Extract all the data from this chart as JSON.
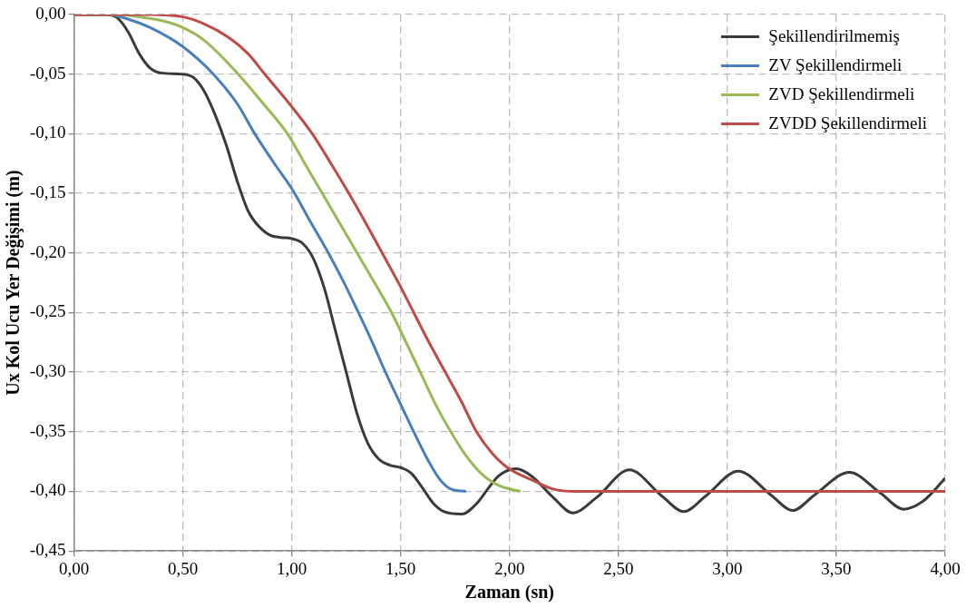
{
  "chart_data": {
    "type": "line",
    "xlabel": "Zaman (sn)",
    "ylabel": "Ux Kol Ucu Yer Değişimi (m)",
    "xlim": [
      0,
      4
    ],
    "ylim": [
      -0.45,
      0
    ],
    "xticks": [
      {
        "value": 0,
        "label": "0,00"
      },
      {
        "value": 0.5,
        "label": "0,50"
      },
      {
        "value": 1,
        "label": "1,00"
      },
      {
        "value": 1.5,
        "label": "1,50"
      },
      {
        "value": 2,
        "label": "2,00"
      },
      {
        "value": 2.5,
        "label": "2,50"
      },
      {
        "value": 3,
        "label": "3,00"
      },
      {
        "value": 3.5,
        "label": "3,50"
      },
      {
        "value": 4,
        "label": "4,00"
      }
    ],
    "yticks": [
      {
        "value": -0.45,
        "label": "-0,45"
      },
      {
        "value": -0.4,
        "label": "-0,40"
      },
      {
        "value": -0.35,
        "label": "-0,35"
      },
      {
        "value": -0.3,
        "label": "-0,30"
      },
      {
        "value": -0.25,
        "label": "-0,25"
      },
      {
        "value": -0.2,
        "label": "-0,20"
      },
      {
        "value": -0.15,
        "label": "-0,15"
      },
      {
        "value": -0.1,
        "label": "-0,10"
      },
      {
        "value": -0.05,
        "label": "-0,05"
      },
      {
        "value": 0,
        "label": "0,00"
      }
    ],
    "grid": true,
    "legend": "top right",
    "marker": "none",
    "line_style": "solid",
    "series": [
      {
        "name": "Şekillendirilmemiş",
        "color": "#3a3a3a",
        "x": [
          0,
          0.15,
          0.2,
          0.25,
          0.3,
          0.35,
          0.4,
          0.5,
          0.55,
          0.6,
          0.65,
          0.7,
          0.75,
          0.8,
          0.85,
          0.9,
          0.95,
          1.0,
          1.05,
          1.1,
          1.15,
          1.2,
          1.25,
          1.3,
          1.35,
          1.4,
          1.45,
          1.5,
          1.55,
          1.6,
          1.65,
          1.7,
          1.78,
          1.85,
          1.9,
          1.95,
          2.03,
          2.1,
          2.2,
          2.29,
          2.4,
          2.55,
          2.7,
          2.8,
          2.9,
          3.05,
          3.2,
          3.3,
          3.4,
          3.56,
          3.7,
          3.81,
          3.9,
          4.0
        ],
        "values": [
          0,
          0,
          -0.003,
          -0.015,
          -0.033,
          -0.045,
          -0.049,
          -0.05,
          -0.053,
          -0.065,
          -0.085,
          -0.11,
          -0.14,
          -0.165,
          -0.178,
          -0.185,
          -0.187,
          -0.188,
          -0.192,
          -0.205,
          -0.23,
          -0.265,
          -0.3,
          -0.335,
          -0.36,
          -0.373,
          -0.378,
          -0.38,
          -0.385,
          -0.397,
          -0.41,
          -0.417,
          -0.419,
          -0.41,
          -0.398,
          -0.387,
          -0.381,
          -0.387,
          -0.405,
          -0.418,
          -0.405,
          -0.382,
          -0.404,
          -0.417,
          -0.404,
          -0.383,
          -0.403,
          -0.416,
          -0.403,
          -0.384,
          -0.401,
          -0.415,
          -0.408,
          -0.389
        ]
      },
      {
        "name": "ZV Şekillendirmeli",
        "color": "#4a7ebb",
        "x": [
          0,
          0.15,
          0.25,
          0.35,
          0.5,
          0.64,
          0.75,
          0.83,
          0.92,
          1.0,
          1.08,
          1.168,
          1.24,
          1.306,
          1.37,
          1.43,
          1.5,
          1.56,
          1.62,
          1.68,
          1.73,
          1.8
        ],
        "values": [
          0,
          0,
          -0.004,
          -0.011,
          -0.027,
          -0.05,
          -0.075,
          -0.1,
          -0.125,
          -0.146,
          -0.172,
          -0.2,
          -0.225,
          -0.25,
          -0.275,
          -0.3,
          -0.327,
          -0.35,
          -0.372,
          -0.39,
          -0.398,
          -0.4
        ]
      },
      {
        "name": "ZVD Şekillendirmeli",
        "color": "#98b954",
        "x": [
          0,
          0.2,
          0.3,
          0.4,
          0.5,
          0.6,
          0.754,
          0.87,
          0.98,
          1.06,
          1.14,
          1.22,
          1.3,
          1.38,
          1.458,
          1.525,
          1.59,
          1.66,
          1.73,
          1.8,
          1.87,
          1.95,
          2.05
        ],
        "values": [
          0,
          0,
          -0.002,
          -0.005,
          -0.011,
          -0.022,
          -0.05,
          -0.075,
          -0.1,
          -0.125,
          -0.15,
          -0.175,
          -0.2,
          -0.225,
          -0.25,
          -0.275,
          -0.3,
          -0.327,
          -0.35,
          -0.37,
          -0.385,
          -0.395,
          -0.4
        ]
      },
      {
        "name": "ZVDD Şekillendirmeli",
        "color": "#be4b48",
        "x": [
          0,
          0.35,
          0.5,
          0.6,
          0.7,
          0.8,
          0.876,
          0.99,
          1.094,
          1.18,
          1.262,
          1.34,
          1.415,
          1.49,
          1.56,
          1.63,
          1.705,
          1.78,
          1.848,
          1.92,
          1.99,
          2.11,
          2.2,
          2.3,
          4
        ],
        "values": [
          0,
          0,
          -0.002,
          -0.008,
          -0.018,
          -0.033,
          -0.05,
          -0.075,
          -0.1,
          -0.125,
          -0.15,
          -0.175,
          -0.2,
          -0.225,
          -0.25,
          -0.275,
          -0.3,
          -0.325,
          -0.35,
          -0.368,
          -0.38,
          -0.391,
          -0.398,
          -0.4,
          -0.4
        ]
      }
    ]
  }
}
